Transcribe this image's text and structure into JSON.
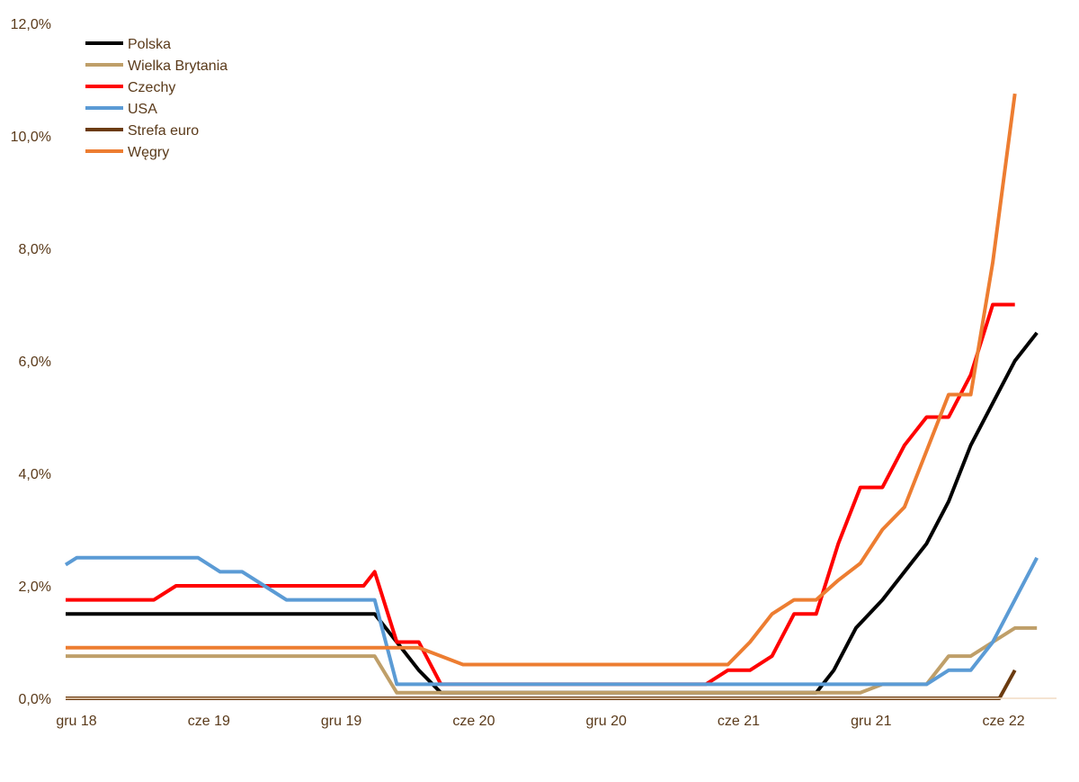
{
  "chart_data": {
    "type": "line",
    "title": "",
    "xlabel": "",
    "ylabel": "",
    "ylim": [
      0,
      12
    ],
    "y_ticks": [
      0,
      2,
      4,
      6,
      8,
      10,
      12
    ],
    "y_tick_labels": [
      "0,0%",
      "2,0%",
      "4,0%",
      "6,0%",
      "8,0%",
      "10,0%",
      "12,0%"
    ],
    "x_range": [
      0,
      43
    ],
    "x_ticks": [
      0,
      6,
      12,
      18,
      24,
      30,
      36,
      42
    ],
    "x_tick_labels": [
      "gru 18",
      "cze 19",
      "gru 19",
      "cze 20",
      "gru 20",
      "cze 21",
      "gru 21",
      "cze 22"
    ],
    "legend_position": "top-left",
    "series": [
      {
        "name": "Polska",
        "color": "#000000",
        "points": [
          [
            0,
            1.5
          ],
          [
            14,
            1.5
          ],
          [
            15,
            1.0
          ],
          [
            16,
            0.5
          ],
          [
            17,
            0.1
          ],
          [
            33,
            0.1
          ],
          [
            34,
            0.1
          ],
          [
            34.8,
            0.5
          ],
          [
            35.8,
            1.25
          ],
          [
            37,
            1.75
          ],
          [
            38,
            2.25
          ],
          [
            39,
            2.75
          ],
          [
            40,
            3.5
          ],
          [
            41,
            4.5
          ],
          [
            42,
            5.25
          ],
          [
            43,
            6.0
          ],
          [
            44,
            6.5
          ]
        ]
      },
      {
        "name": "Wielka Brytania",
        "color": "#bf9f69",
        "points": [
          [
            0,
            0.75
          ],
          [
            14,
            0.75
          ],
          [
            15,
            0.1
          ],
          [
            36,
            0.1
          ],
          [
            37,
            0.25
          ],
          [
            39,
            0.25
          ],
          [
            40,
            0.75
          ],
          [
            41,
            0.75
          ],
          [
            42,
            1.0
          ],
          [
            43,
            1.25
          ],
          [
            44,
            1.25
          ]
        ]
      },
      {
        "name": "Czechy",
        "color": "#ff0000",
        "points": [
          [
            0,
            1.75
          ],
          [
            4,
            1.75
          ],
          [
            5,
            2.0
          ],
          [
            13.5,
            2.0
          ],
          [
            14,
            2.25
          ],
          [
            15,
            1.0
          ],
          [
            16,
            1.0
          ],
          [
            17,
            0.25
          ],
          [
            29,
            0.25
          ],
          [
            30,
            0.5
          ],
          [
            31,
            0.5
          ],
          [
            32,
            0.75
          ],
          [
            33,
            1.5
          ],
          [
            34,
            1.5
          ],
          [
            35,
            2.75
          ],
          [
            36,
            3.75
          ],
          [
            37,
            3.75
          ],
          [
            38,
            4.5
          ],
          [
            39,
            5.0
          ],
          [
            40,
            5.0
          ],
          [
            41,
            5.75
          ],
          [
            42,
            7.0
          ],
          [
            43,
            7.0
          ]
        ]
      },
      {
        "name": "USA",
        "color": "#5b9bd5",
        "points": [
          [
            0,
            2.375
          ],
          [
            0.5,
            2.5
          ],
          [
            6,
            2.5
          ],
          [
            7,
            2.25
          ],
          [
            8,
            2.25
          ],
          [
            9,
            2.0
          ],
          [
            10,
            1.75
          ],
          [
            14,
            1.75
          ],
          [
            15,
            0.25
          ],
          [
            36,
            0.25
          ],
          [
            39,
            0.25
          ],
          [
            40,
            0.5
          ],
          [
            41,
            0.5
          ],
          [
            42,
            1.0
          ],
          [
            43,
            1.75
          ],
          [
            44,
            2.5
          ]
        ]
      },
      {
        "name": "Strefa euro",
        "color": "#6b3b10",
        "points": [
          [
            0,
            0.0
          ],
          [
            42.3,
            0.0
          ],
          [
            43,
            0.5
          ]
        ]
      },
      {
        "name": "Węgry",
        "color": "#ed7d31",
        "points": [
          [
            0,
            0.9
          ],
          [
            16,
            0.9
          ],
          [
            17,
            0.75
          ],
          [
            18,
            0.6
          ],
          [
            30,
            0.6
          ],
          [
            31,
            1.0
          ],
          [
            32,
            1.5
          ],
          [
            33,
            1.75
          ],
          [
            34,
            1.75
          ],
          [
            35,
            2.1
          ],
          [
            36,
            2.4
          ],
          [
            37,
            3.0
          ],
          [
            38,
            3.4
          ],
          [
            39,
            4.4
          ],
          [
            40,
            5.4
          ],
          [
            41,
            5.4
          ],
          [
            42,
            7.75
          ],
          [
            43,
            10.75
          ]
        ]
      }
    ]
  }
}
